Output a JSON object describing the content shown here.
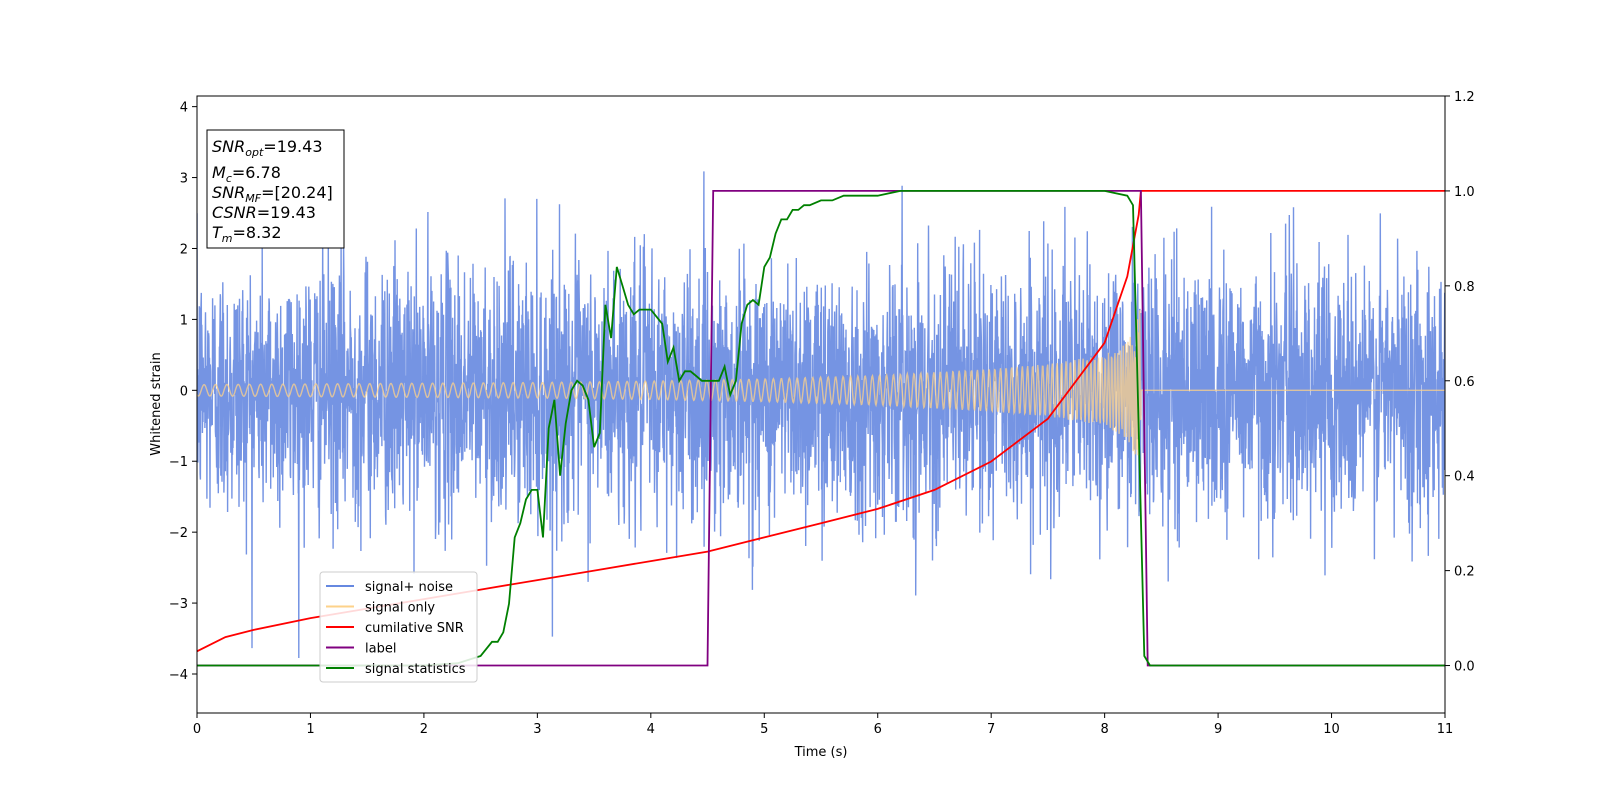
{
  "chart_data": {
    "type": "line",
    "title": "",
    "xlabel": "Time (s)",
    "ylabel": "Whitened strain",
    "ylabel_right": "",
    "xlim": [
      0,
      11
    ],
    "ylim": [
      -4.55,
      4.15
    ],
    "ylim_right": [
      -0.1,
      1.2
    ],
    "x_ticks": [
      0,
      1,
      2,
      3,
      4,
      5,
      6,
      7,
      8,
      9,
      10,
      11
    ],
    "y_ticks": [
      -4,
      -3,
      -2,
      -1,
      0,
      1,
      2,
      3,
      4
    ],
    "y_ticks_right": [
      0.0,
      0.2,
      0.4,
      0.6,
      0.8,
      1.0,
      1.2
    ],
    "grid": false,
    "legend_position": "lower-left",
    "info_box": {
      "snr_opt": {
        "base": "SNR",
        "sub": "opt",
        "value": "=19.43"
      },
      "mc": {
        "base": "M",
        "sub": "c",
        "value": "=6.78"
      },
      "snr_mf": {
        "base": "SNR",
        "sub": "MF",
        "value": "=[20.24]"
      },
      "csnr": {
        "base": "CSNR",
        "value": "=19.43"
      },
      "tm": {
        "base": "T",
        "sub": "m",
        "value": "=8.32"
      }
    },
    "series": [
      {
        "name": "signal+ noise",
        "color": "#6688e0",
        "axis": "left",
        "kind": "noise",
        "sigma": 1.0,
        "samples_per_second": 400,
        "x_range": [
          0,
          11
        ]
      },
      {
        "name": "signal only",
        "color": "#fdd28a",
        "axis": "left",
        "kind": "chirp",
        "envelope_x": [
          0,
          1,
          2,
          3,
          4,
          5,
          6,
          7,
          7.5,
          8,
          8.2,
          8.28,
          8.32
        ],
        "envelope_y": [
          0.08,
          0.09,
          0.1,
          0.11,
          0.13,
          0.16,
          0.21,
          0.3,
          0.37,
          0.5,
          0.68,
          0.95,
          1.2
        ],
        "x_end": 8.32
      },
      {
        "name": "cumilative SNR",
        "color": "#ff0000",
        "axis": "right",
        "x": [
          0,
          0.25,
          0.5,
          1,
          1.5,
          2,
          2.5,
          3,
          3.5,
          4,
          4.5,
          5,
          5.5,
          6,
          6.5,
          7,
          7.5,
          8,
          8.2,
          8.3,
          8.32,
          8.33,
          11
        ],
        "y": [
          0.03,
          0.06,
          0.075,
          0.1,
          0.12,
          0.14,
          0.16,
          0.18,
          0.2,
          0.22,
          0.24,
          0.27,
          0.3,
          0.33,
          0.37,
          0.43,
          0.52,
          0.68,
          0.82,
          0.95,
          1.0,
          1.0,
          1.0
        ]
      },
      {
        "name": "label",
        "color": "#800080",
        "axis": "right",
        "x": [
          0,
          4.5,
          4.55,
          8.32,
          8.38,
          11
        ],
        "y": [
          0,
          0,
          1,
          1,
          0,
          0
        ]
      },
      {
        "name": "signal statistics",
        "color": "#008000",
        "axis": "right",
        "x": [
          0,
          1,
          2,
          2.3,
          2.5,
          2.6,
          2.65,
          2.7,
          2.75,
          2.8,
          2.85,
          2.9,
          2.95,
          3.0,
          3.05,
          3.1,
          3.15,
          3.2,
          3.25,
          3.3,
          3.35,
          3.4,
          3.45,
          3.5,
          3.55,
          3.6,
          3.65,
          3.7,
          3.75,
          3.8,
          3.85,
          3.9,
          4.0,
          4.1,
          4.15,
          4.2,
          4.25,
          4.3,
          4.35,
          4.4,
          4.45,
          4.5,
          4.55,
          4.6,
          4.65,
          4.7,
          4.75,
          4.8,
          4.85,
          4.9,
          4.95,
          5.0,
          5.05,
          5.1,
          5.15,
          5.2,
          5.25,
          5.3,
          5.35,
          5.4,
          5.5,
          5.6,
          5.7,
          5.8,
          5.9,
          6.0,
          6.2,
          6.5,
          7.0,
          7.5,
          8.0,
          8.2,
          8.25,
          8.3,
          8.35,
          8.4,
          8.5,
          9,
          10,
          11
        ],
        "y": [
          0,
          0,
          0.0,
          0.005,
          0.02,
          0.05,
          0.05,
          0.07,
          0.13,
          0.27,
          0.3,
          0.35,
          0.37,
          0.37,
          0.27,
          0.5,
          0.56,
          0.4,
          0.51,
          0.58,
          0.6,
          0.59,
          0.56,
          0.46,
          0.49,
          0.76,
          0.69,
          0.84,
          0.8,
          0.76,
          0.74,
          0.75,
          0.75,
          0.72,
          0.64,
          0.67,
          0.6,
          0.62,
          0.62,
          0.61,
          0.6,
          0.6,
          0.6,
          0.6,
          0.63,
          0.57,
          0.6,
          0.72,
          0.76,
          0.77,
          0.76,
          0.84,
          0.86,
          0.91,
          0.94,
          0.94,
          0.96,
          0.96,
          0.97,
          0.97,
          0.98,
          0.98,
          0.99,
          0.99,
          0.99,
          0.99,
          1.0,
          1.0,
          1.0,
          1.0,
          1.0,
          0.99,
          0.97,
          0.5,
          0.02,
          0.0,
          0.0,
          0.0,
          0.0,
          0.0
        ]
      }
    ]
  }
}
